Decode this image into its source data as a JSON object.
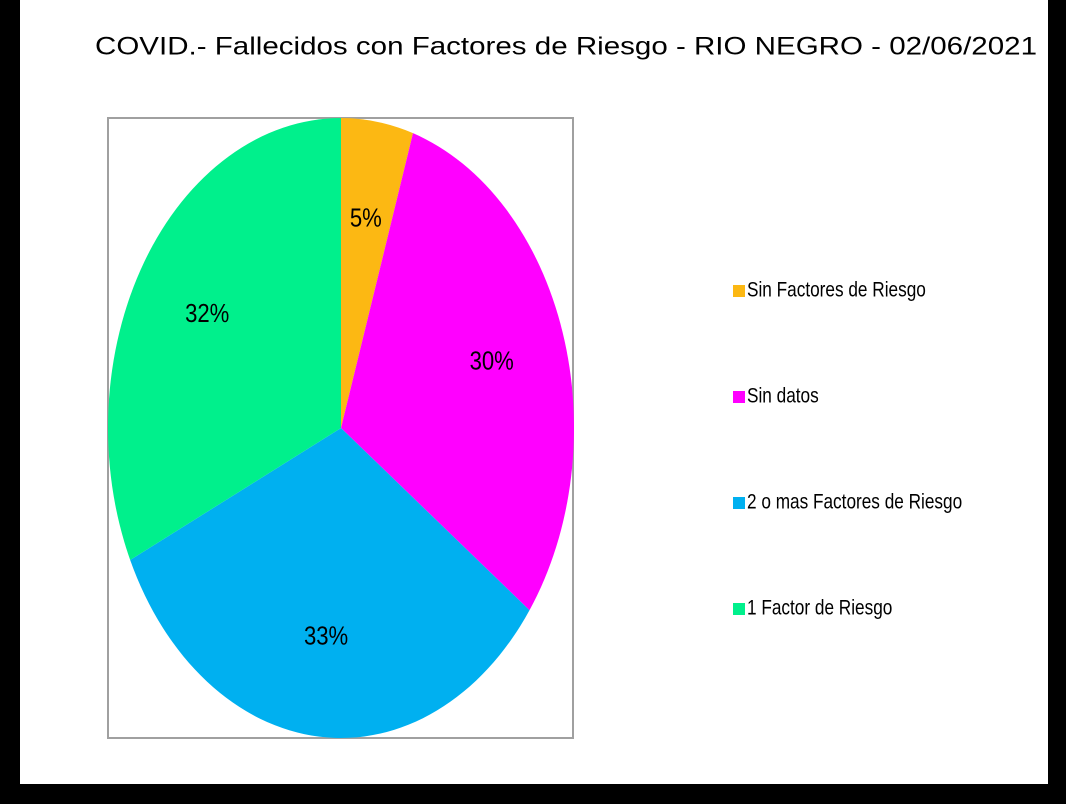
{
  "chart_data": {
    "type": "pie",
    "title": "COVID.- Fallecidos con Factores de Riesgo - RIO NEGRO - 02/06/2021",
    "categories": [
      "Sin Factores de Riesgo",
      "Sin datos",
      "2 o mas Factores de Riesgo",
      "1 Factor de Riesgo"
    ],
    "values": [
      5,
      30,
      33,
      32
    ],
    "value_labels": [
      "5%",
      "30%",
      "33%",
      "32%"
    ],
    "colors": [
      "#fcb813",
      "#ff00ff",
      "#00b0f0",
      "#00f08c"
    ],
    "legend": "right"
  }
}
